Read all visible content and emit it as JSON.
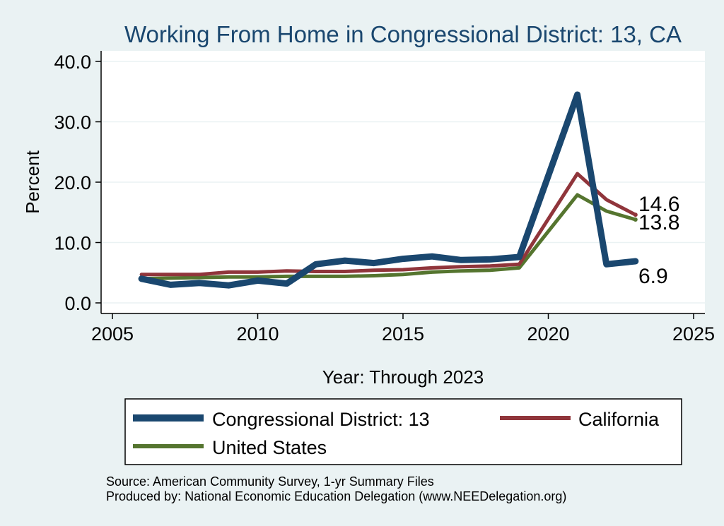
{
  "chart_data": {
    "type": "line",
    "title": "Working From Home in Congressional District: 13, CA",
    "xlabel": "Year: Through 2023",
    "ylabel": "Percent",
    "xlim": [
      2005,
      2025
    ],
    "ylim": [
      0,
      40
    ],
    "x_ticks": [
      "2005",
      "2010",
      "2015",
      "2020",
      "2025"
    ],
    "y_ticks": [
      "0.0",
      "10.0",
      "20.0",
      "30.0",
      "40.0"
    ],
    "grid": true,
    "legend_position": "bottom",
    "x": [
      2006,
      2007,
      2008,
      2009,
      2010,
      2011,
      2012,
      2013,
      2014,
      2015,
      2016,
      2017,
      2018,
      2019,
      2021,
      2022,
      2023
    ],
    "series": [
      {
        "name": "Congressional District: 13",
        "color": "#1a476f",
        "values": [
          4.0,
          3.0,
          3.3,
          2.9,
          3.7,
          3.2,
          6.4,
          7.0,
          6.6,
          7.3,
          7.7,
          7.1,
          7.2,
          7.6,
          34.5,
          6.4,
          6.9
        ],
        "end_label": "6.9"
      },
      {
        "name": "California",
        "color": "#90353b",
        "values": [
          4.7,
          4.7,
          4.7,
          5.1,
          5.1,
          5.3,
          5.2,
          5.2,
          5.4,
          5.5,
          5.8,
          6.0,
          6.1,
          6.4,
          21.4,
          17.1,
          14.6
        ],
        "end_label": "14.6"
      },
      {
        "name": "United States",
        "color": "#55752f",
        "values": [
          4.0,
          4.1,
          4.2,
          4.3,
          4.3,
          4.4,
          4.4,
          4.4,
          4.5,
          4.7,
          5.1,
          5.3,
          5.4,
          5.8,
          17.9,
          15.2,
          13.8
        ],
        "end_label": "13.8"
      }
    ],
    "notes": [
      "Source: American Community Survey, 1-yr Summary Files",
      "Produced by: National Economic Education Delegation (www.NEEDelegation.org)"
    ]
  }
}
